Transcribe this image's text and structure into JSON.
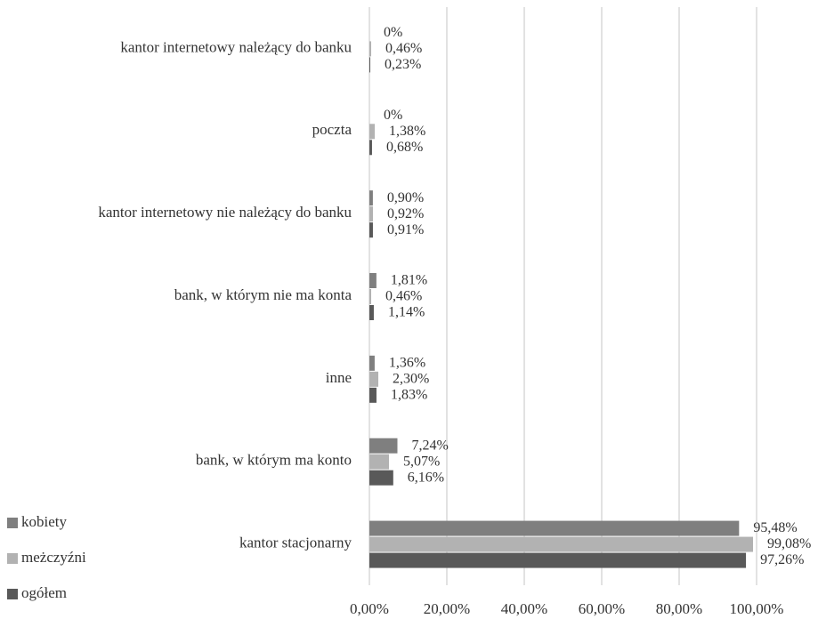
{
  "chart_data": {
    "type": "bar",
    "orientation": "horizontal",
    "categories": [
      "kantor internetowy należący do banku",
      "poczta",
      "kantor internetowy nie należący do banku",
      "bank, w którym nie ma konta",
      "inne",
      "bank, w którym ma konto",
      "kantor stacjonarny"
    ],
    "series": [
      {
        "name": "kobiety",
        "color": "#7f7f7f",
        "values": [
          0,
          0,
          0.9,
          1.81,
          1.36,
          7.24,
          95.48
        ],
        "value_labels": [
          "0%",
          "0%",
          "0,90%",
          "1,81%",
          "1,36%",
          "7,24%",
          "95,48%"
        ]
      },
      {
        "name": "meżczyźni",
        "color": "#b2b2b2",
        "values": [
          0.46,
          1.38,
          0.92,
          0.46,
          2.3,
          5.07,
          99.08
        ],
        "value_labels": [
          "0,46%",
          "1,38%",
          "0,92%",
          "0,46%",
          "2,30%",
          "5,07%",
          "99,08%"
        ]
      },
      {
        "name": "ogółem",
        "color": "#595959",
        "values": [
          0.23,
          0.68,
          0.91,
          1.14,
          1.83,
          6.16,
          97.26
        ],
        "value_labels": [
          "0,23%",
          "0,68%",
          "0,91%",
          "1,14%",
          "1,83%",
          "6,16%",
          "97,26%"
        ]
      }
    ],
    "xlim": [
      0,
      100
    ],
    "xticks": [
      {
        "value": 0,
        "label": "0,00%"
      },
      {
        "value": 20,
        "label": "20,00%"
      },
      {
        "value": 40,
        "label": "40,00%"
      },
      {
        "value": 60,
        "label": "60,00%"
      },
      {
        "value": 80,
        "label": "80,00%"
      },
      {
        "value": 100,
        "label": "100,00%"
      }
    ],
    "grid": true,
    "legend": "bottom-left"
  }
}
